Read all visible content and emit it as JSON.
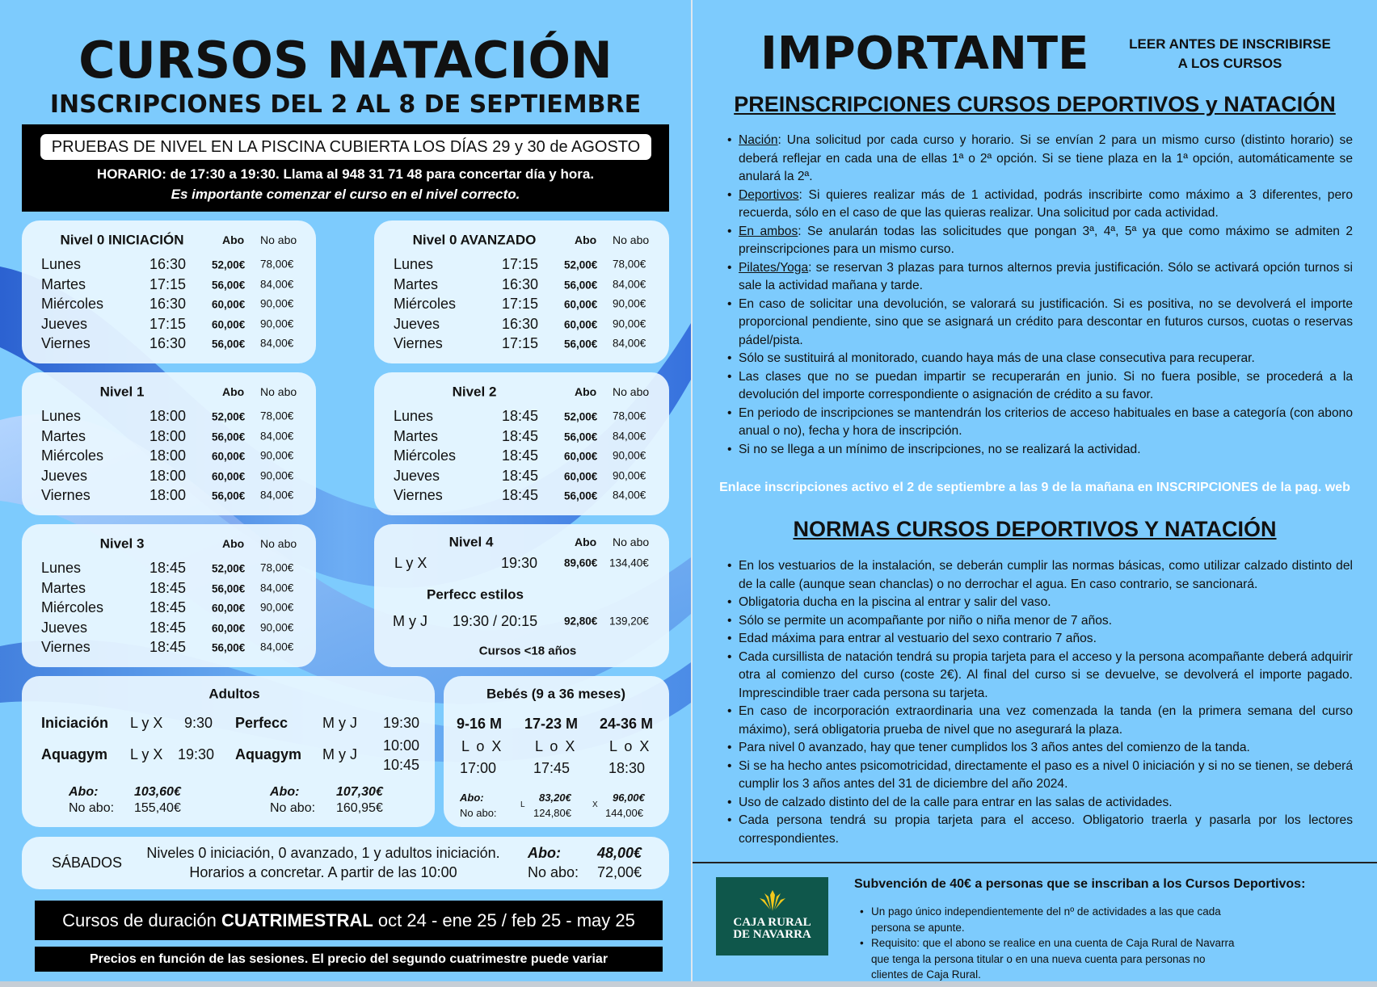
{
  "left": {
    "title": "CURSOS NATACIÓN",
    "subtitle": "INSCRIPCIONES DEL 2 AL 8 DE SEPTIEMBRE",
    "banner": {
      "pill": "PRUEBAS DE NIVEL EN LA PISCINA CUBIERTA LOS DÍAS 29 y 30 de AGOSTO",
      "horario": "HORARIO: de 17:30 a 19:30. Llama al 948 31 71 48 para concertar día y hora.",
      "note": "Es importante comenzar el curso en el nivel correcto."
    },
    "col_abo": "Abo",
    "col_noabo": "No abo",
    "levels": [
      {
        "title": "Nivel 0 INICIACIÓN",
        "rows": [
          [
            "Lunes",
            "16:30",
            "52,00€",
            "78,00€"
          ],
          [
            "Martes",
            "17:15",
            "56,00€",
            "84,00€"
          ],
          [
            "Miércoles",
            "16:30",
            "60,00€",
            "90,00€"
          ],
          [
            "Jueves",
            "17:15",
            "60,00€",
            "90,00€"
          ],
          [
            "Viernes",
            "16:30",
            "56,00€",
            "84,00€"
          ]
        ]
      },
      {
        "title": "Nivel 0 AVANZADO",
        "rows": [
          [
            "Lunes",
            "17:15",
            "52,00€",
            "78,00€"
          ],
          [
            "Martes",
            "16:30",
            "56,00€",
            "84,00€"
          ],
          [
            "Miércoles",
            "17:15",
            "60,00€",
            "90,00€"
          ],
          [
            "Jueves",
            "16:30",
            "60,00€",
            "90,00€"
          ],
          [
            "Viernes",
            "17:15",
            "56,00€",
            "84,00€"
          ]
        ]
      },
      {
        "title": "Nivel 1",
        "rows": [
          [
            "Lunes",
            "18:00",
            "52,00€",
            "78,00€"
          ],
          [
            "Martes",
            "18:00",
            "56,00€",
            "84,00€"
          ],
          [
            "Miércoles",
            "18:00",
            "60,00€",
            "90,00€"
          ],
          [
            "Jueves",
            "18:00",
            "60,00€",
            "90,00€"
          ],
          [
            "Viernes",
            "18:00",
            "56,00€",
            "84,00€"
          ]
        ]
      },
      {
        "title": "Nivel 2",
        "rows": [
          [
            "Lunes",
            "18:45",
            "52,00€",
            "78,00€"
          ],
          [
            "Martes",
            "18:45",
            "56,00€",
            "84,00€"
          ],
          [
            "Miércoles",
            "18:45",
            "60,00€",
            "90,00€"
          ],
          [
            "Jueves",
            "18:45",
            "60,00€",
            "90,00€"
          ],
          [
            "Viernes",
            "18:45",
            "56,00€",
            "84,00€"
          ]
        ]
      },
      {
        "title": "Nivel 3",
        "rows": [
          [
            "Lunes",
            "18:45",
            "52,00€",
            "78,00€"
          ],
          [
            "Martes",
            "18:45",
            "56,00€",
            "84,00€"
          ],
          [
            "Miércoles",
            "18:45",
            "60,00€",
            "90,00€"
          ],
          [
            "Jueves",
            "18:45",
            "60,00€",
            "90,00€"
          ],
          [
            "Viernes",
            "18:45",
            "56,00€",
            "84,00€"
          ]
        ]
      }
    ],
    "nivel4": {
      "title": "Nivel 4",
      "row1": [
        "L y X",
        "19:30",
        "89,60€",
        "134,40€"
      ],
      "sub": "Perfecc estilos",
      "row2": [
        "M y J",
        "19:30 / 20:15",
        "92,80€",
        "139,20€"
      ],
      "footer": "Cursos <18 años"
    },
    "adultos": {
      "title": "Adultos",
      "ini": "Iniciación",
      "ini_days": "L y X",
      "ini_time": "9:30",
      "perf": "Perfecc",
      "perf_days": "M y J",
      "perf_time": "19:30",
      "aq1": "Aquagym",
      "aq1_days": "L y X",
      "aq1_time": "19:30",
      "aq2": "Aquagym",
      "aq2_days": "M y J",
      "aq2_time1": "10:00",
      "aq2_time2": "10:45",
      "abo_label": "Abo:",
      "noabo_label": "No abo:",
      "price1_abo": "103,60€",
      "price1_noabo": "155,40€",
      "price2_abo": "107,30€",
      "price2_noabo": "160,95€"
    },
    "bebes": {
      "title": "Bebés (9 a 36 meses)",
      "groups": [
        [
          "9-16 M",
          "L o X",
          "17:00"
        ],
        [
          "17-23 M",
          "L o X",
          "17:45"
        ],
        [
          "24-36 M",
          "L o X",
          "18:30"
        ]
      ],
      "abo_label": "Abo:",
      "noabo_label": "No abo:",
      "l_mark": "L",
      "x_mark": "X",
      "l_abo": "83,20€",
      "l_noabo": "124,80€",
      "x_abo": "96,00€",
      "x_noabo": "144,00€"
    },
    "sabados": {
      "label": "SÁBADOS",
      "line1": "Niveles 0 iniciación, 0 avanzado, 1 y adultos iniciación.",
      "line2": "Horarios a concretar. A partir de las 10:00",
      "abo_label": "Abo:",
      "abo": "48,00€",
      "noabo_label": "No abo:",
      "noabo": "72,00€"
    },
    "duration": {
      "pre": "Cursos de duración ",
      "bold": "CUATRIMESTRAL",
      "post": " oct 24 - ene 25 / feb 25 - may 25"
    },
    "prices_note": "Precios en función de las sesiones. El precio del segundo cuatrimestre puede variar"
  },
  "right": {
    "title": "IMPORTANTE",
    "note_line1": "LEER ANTES DE INSCRIBIRSE",
    "note_line2": "A LOS CURSOS",
    "pre_heading": "PREINSCRIPCIONES CURSOS DEPORTIVOS y NATACIÓN",
    "pre_items": [
      {
        "lead": "Nación",
        "text": ": Una solicitud por cada curso y horario. Si se envían 2 para un mismo curso (distinto horario) se deberá reflejar en cada una de ellas 1ª o 2ª opción. Si se tiene plaza en la 1ª opción, automáticamente se anulará la 2ª."
      },
      {
        "lead": "Deportivos",
        "text": ": Si quieres realizar más de 1 actividad, podrás inscribirte como máximo a 3 diferentes, pero recuerda, sólo en el caso de que las quieras realizar. Una solicitud por cada actividad."
      },
      {
        "lead": "En ambos",
        "text": ": Se anularán todas las solicitudes que pongan 3ª, 4ª, 5ª ya que como máximo se admiten 2 preinscripciones para un mismo curso."
      },
      {
        "lead": "Pilates/Yoga",
        "text": ": se reservan 3 plazas para turnos alternos previa justificación. Sólo se activará opción turnos si sale la actividad mañana y tarde."
      },
      {
        "lead": "",
        "text": "En caso de solicitar una devolución, se valorará su justificación. Si es positiva, no se devolverá el importe proporcional pendiente, sino que se asignará un crédito para descontar en futuros cursos, cuotas o reservas pádel/pista."
      },
      {
        "lead": "",
        "text": "Sólo se sustituirá al monitorado, cuando haya más de una clase consecutiva para recuperar."
      },
      {
        "lead": "",
        "text": "Las clases que no se puedan impartir se recuperarán en junio. Si no fuera posible, se procederá a la devolución del importe correspondiente o asignación de crédito a su favor."
      },
      {
        "lead": "",
        "text": "En periodo de inscripciones se mantendrán los criterios de acceso habituales en base a categoría (con abono anual o no), fecha y hora de inscripción."
      },
      {
        "lead": "",
        "text": "Si no se llega a un mínimo de inscripciones, no se realizará la actividad."
      }
    ],
    "link_note": "Enlace inscripciones activo el 2 de septiembre a las 9 de la mañana en INSCRIPCIONES de la pag. web",
    "normas_heading": "NORMAS CURSOS DEPORTIVOS Y NATACIÓN",
    "normas_items": [
      "En los vestuarios de la instalación, se deberán cumplir  las normas básicas, como utilizar calzado distinto del de la calle (aunque sean chanclas) o no derrochar el agua. En caso contrario, se sancionará.",
      "Obligatoria ducha en la piscina al entrar y salir del vaso.",
      "Sólo se permite un acompañante por niño o niña menor de 7 años.",
      "Edad máxima para entrar al vestuario del sexo contrario 7 años.",
      "Cada cursillista de natación tendrá su propia tarjeta para el acceso y la persona acompañante deberá adquirir otra al comienzo del curso (coste 2€). Al final del curso si se devuelve, se devolverá el importe pagado. Imprescindible traer cada persona su tarjeta.",
      "En caso de incorporación extraordinaria una vez comenzada la tanda (en la primera semana del curso máximo), será obligatoria prueba de nivel que no asegurará la plaza.",
      "Para nivel 0 avanzado, hay que tener cumplidos los 3 años antes del comienzo de la tanda.",
      "Si se ha hecho antes psicomotricidad, directamente el paso es a nivel 0 iniciación y si no se tienen, se deberá cumplir los 3 años antes del 31 de diciembre del año 2024.",
      "Uso de calzado distinto del de la calle para entrar en las salas de actividades.",
      "Cada persona tendrá su propia tarjeta para el acceso. Obligatorio traerla y pasarla por los lectores correspondientes."
    ],
    "sponsor": {
      "logo_line1": "CAJA RURAL",
      "logo_line2": "DE NAVARRA",
      "heading": "Subvención de 40€ a personas que se inscriban a los Cursos Deportivos:",
      "items": [
        "Un pago único independientemente del nº de actividades a las que cada persona se apunte.",
        "Requisito: que el abono se realice en una cuenta de Caja Rural de Navarra que tenga la persona titular o en una nueva cuenta para personas no clientes de Caja Rural."
      ]
    }
  },
  "colors": {
    "background": "#7dcbfd",
    "card": "#eaf6ff",
    "logo_green": "#0f574b",
    "wave": "#1f5fd6"
  }
}
